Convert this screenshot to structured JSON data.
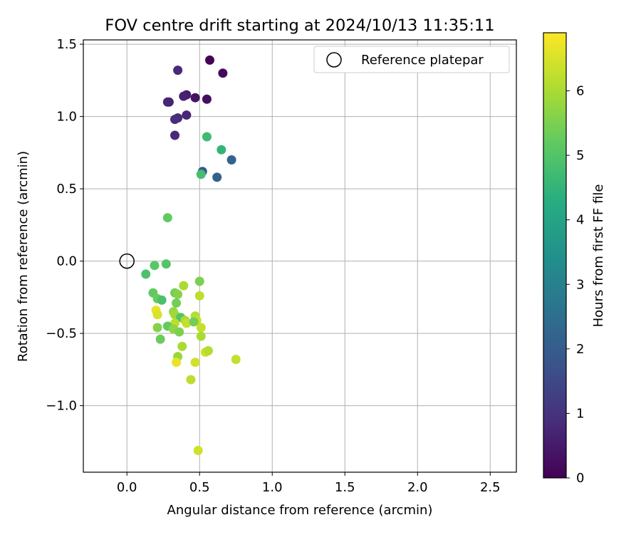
{
  "chart_data": {
    "type": "scatter",
    "title": "FOV centre drift starting at 2024/10/13 11:35:11",
    "xlabel": "Angular distance from reference (arcmin)",
    "ylabel": "Rotation from reference (arcmin)",
    "xlim": [
      -0.3,
      2.68
    ],
    "ylim": [
      -1.46,
      1.53
    ],
    "xticks": [
      0.0,
      0.5,
      1.0,
      1.5,
      2.0,
      2.5
    ],
    "xtick_labels": [
      "0.0",
      "0.5",
      "1.0",
      "1.5",
      "2.0",
      "2.5"
    ],
    "yticks": [
      -1.0,
      -0.5,
      0.0,
      0.5,
      1.0,
      1.5
    ],
    "ytick_labels": [
      "−1.0",
      "−0.5",
      "0.0",
      "0.5",
      "1.0",
      "1.5"
    ],
    "grid": true,
    "legend": {
      "position": "top-right",
      "entries": [
        "Reference platepar"
      ]
    },
    "reference_point": {
      "x": 0.0,
      "y": 0.0
    },
    "colorbar": {
      "label": "Hours from first FF file",
      "range": [
        0,
        6.9
      ],
      "ticks": [
        0,
        1,
        2,
        3,
        4,
        5,
        6
      ],
      "tick_labels": [
        "0",
        "1",
        "2",
        "3",
        "4",
        "5",
        "6"
      ],
      "colormap": "viridis"
    },
    "points": [
      {
        "x": 0.57,
        "y": 1.39,
        "c": 0.05
      },
      {
        "x": 0.66,
        "y": 1.3,
        "c": 0.15
      },
      {
        "x": 0.35,
        "y": 1.32,
        "c": 0.8
      },
      {
        "x": 0.41,
        "y": 1.15,
        "c": 0.55
      },
      {
        "x": 0.39,
        "y": 1.14,
        "c": 0.65
      },
      {
        "x": 0.47,
        "y": 1.13,
        "c": 0.35
      },
      {
        "x": 0.55,
        "y": 1.12,
        "c": 0.25
      },
      {
        "x": 0.29,
        "y": 1.1,
        "c": 0.6
      },
      {
        "x": 0.28,
        "y": 1.1,
        "c": 0.7
      },
      {
        "x": 0.41,
        "y": 1.01,
        "c": 0.75
      },
      {
        "x": 0.35,
        "y": 0.99,
        "c": 0.85
      },
      {
        "x": 0.33,
        "y": 0.98,
        "c": 0.9
      },
      {
        "x": 0.33,
        "y": 0.87,
        "c": 0.8
      },
      {
        "x": 0.55,
        "y": 0.86,
        "c": 4.7
      },
      {
        "x": 0.65,
        "y": 0.77,
        "c": 4.5
      },
      {
        "x": 0.72,
        "y": 0.7,
        "c": 2.2
      },
      {
        "x": 0.52,
        "y": 0.62,
        "c": 2.0
      },
      {
        "x": 0.62,
        "y": 0.58,
        "c": 2.1
      },
      {
        "x": 0.51,
        "y": 0.6,
        "c": 4.8
      },
      {
        "x": 0.28,
        "y": 0.3,
        "c": 5.2
      },
      {
        "x": 0.13,
        "y": -0.09,
        "c": 4.9
      },
      {
        "x": 0.19,
        "y": -0.03,
        "c": 5.1
      },
      {
        "x": 0.27,
        "y": -0.02,
        "c": 5.0
      },
      {
        "x": 0.18,
        "y": -0.22,
        "c": 5.2
      },
      {
        "x": 0.21,
        "y": -0.26,
        "c": 5.3
      },
      {
        "x": 0.24,
        "y": -0.27,
        "c": 4.9
      },
      {
        "x": 0.33,
        "y": -0.22,
        "c": 5.4
      },
      {
        "x": 0.35,
        "y": -0.23,
        "c": 5.6
      },
      {
        "x": 0.39,
        "y": -0.17,
        "c": 6.0
      },
      {
        "x": 0.5,
        "y": -0.14,
        "c": 5.5
      },
      {
        "x": 0.5,
        "y": -0.24,
        "c": 6.2
      },
      {
        "x": 0.34,
        "y": -0.29,
        "c": 5.4
      },
      {
        "x": 0.32,
        "y": -0.35,
        "c": 5.8
      },
      {
        "x": 0.2,
        "y": -0.34,
        "c": 6.7
      },
      {
        "x": 0.21,
        "y": -0.37,
        "c": 6.5
      },
      {
        "x": 0.33,
        "y": -0.37,
        "c": 5.9
      },
      {
        "x": 0.37,
        "y": -0.39,
        "c": 5.0
      },
      {
        "x": 0.4,
        "y": -0.41,
        "c": 6.0
      },
      {
        "x": 0.41,
        "y": -0.43,
        "c": 6.3
      },
      {
        "x": 0.47,
        "y": -0.38,
        "c": 6.1
      },
      {
        "x": 0.48,
        "y": -0.41,
        "c": 6.3
      },
      {
        "x": 0.46,
        "y": -0.42,
        "c": 5.4
      },
      {
        "x": 0.33,
        "y": -0.43,
        "c": 6.2
      },
      {
        "x": 0.28,
        "y": -0.45,
        "c": 5.2
      },
      {
        "x": 0.32,
        "y": -0.47,
        "c": 5.7
      },
      {
        "x": 0.21,
        "y": -0.46,
        "c": 5.6
      },
      {
        "x": 0.36,
        "y": -0.49,
        "c": 5.5
      },
      {
        "x": 0.51,
        "y": -0.46,
        "c": 6.3
      },
      {
        "x": 0.51,
        "y": -0.52,
        "c": 6.0
      },
      {
        "x": 0.23,
        "y": -0.54,
        "c": 5.3
      },
      {
        "x": 0.38,
        "y": -0.59,
        "c": 6.0
      },
      {
        "x": 0.54,
        "y": -0.63,
        "c": 6.4
      },
      {
        "x": 0.56,
        "y": -0.62,
        "c": 6.1
      },
      {
        "x": 0.35,
        "y": -0.66,
        "c": 5.8
      },
      {
        "x": 0.34,
        "y": -0.7,
        "c": 6.7
      },
      {
        "x": 0.47,
        "y": -0.7,
        "c": 6.4
      },
      {
        "x": 0.75,
        "y": -0.68,
        "c": 6.3
      },
      {
        "x": 0.44,
        "y": -0.82,
        "c": 6.2
      },
      {
        "x": 0.49,
        "y": -1.31,
        "c": 6.4
      }
    ]
  }
}
